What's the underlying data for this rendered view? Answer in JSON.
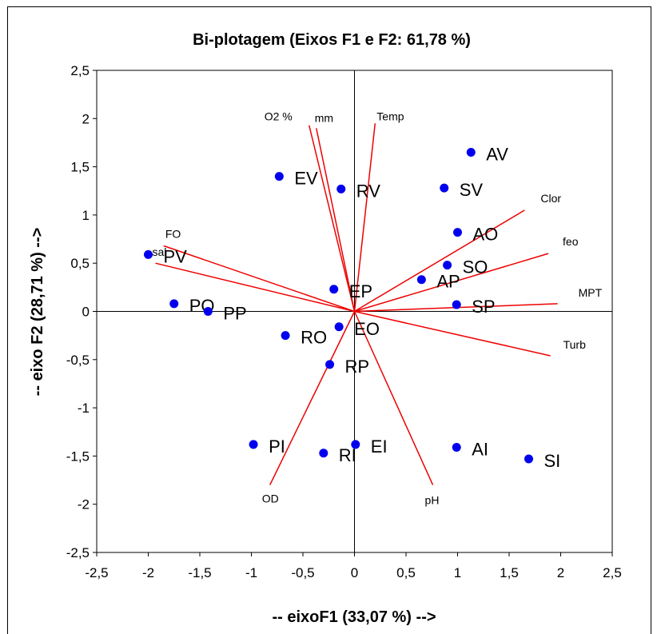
{
  "chart_data": {
    "type": "scatter",
    "title": "Bi-plotagem (Eixos F1 e F2: 61,78 %)",
    "xlabel": "-- eixoF1 (33,07 %) -->",
    "ylabel": "-- eixo F2 (28,71 %) -->",
    "xlim": [
      -2.5,
      2.5
    ],
    "ylim": [
      -2.5,
      2.5
    ],
    "xticks": [
      -2.5,
      -2,
      -1.5,
      -1,
      -0.5,
      0,
      0.5,
      1,
      1.5,
      2,
      2.5
    ],
    "yticks": [
      -2.5,
      -2,
      -1.5,
      -1,
      -0.5,
      0,
      0.5,
      1,
      1.5,
      2,
      2.5
    ],
    "xtick_labels": [
      "-2,5",
      "-2",
      "-1,5",
      "-1",
      "-0,5",
      "0",
      "0,5",
      "1",
      "1,5",
      "2",
      "2,5"
    ],
    "ytick_labels": [
      "-2,5",
      "-2",
      "-1,5",
      "-1",
      "-0,5",
      "0",
      "0,5",
      "1",
      "1,5",
      "2",
      "2,5"
    ],
    "grid": false,
    "point_color": "#0000ee",
    "vector_color": "#ee0000",
    "observations": [
      {
        "label": "AV",
        "x": 1.13,
        "y": 1.65
      },
      {
        "label": "EV",
        "x": -0.73,
        "y": 1.4
      },
      {
        "label": "RV",
        "x": -0.13,
        "y": 1.27
      },
      {
        "label": "SV",
        "x": 0.87,
        "y": 1.28
      },
      {
        "label": "AO",
        "x": 1.0,
        "y": 0.82
      },
      {
        "label": "SO",
        "x": 0.9,
        "y": 0.48
      },
      {
        "label": "AP",
        "x": 0.65,
        "y": 0.33
      },
      {
        "label": "PV",
        "x": -2.0,
        "y": 0.59
      },
      {
        "label": "EP",
        "x": -0.2,
        "y": 0.23
      },
      {
        "label": "SP",
        "x": 0.99,
        "y": 0.07
      },
      {
        "label": "PO",
        "x": -1.75,
        "y": 0.08
      },
      {
        "label": "PP",
        "x": -1.42,
        "y": 0.0
      },
      {
        "label": "EO",
        "x": -0.15,
        "y": -0.16
      },
      {
        "label": "RO",
        "x": -0.67,
        "y": -0.25
      },
      {
        "label": "RP",
        "x": -0.24,
        "y": -0.55
      },
      {
        "label": "PI",
        "x": -0.98,
        "y": -1.38
      },
      {
        "label": "EI",
        "x": 0.01,
        "y": -1.38
      },
      {
        "label": "RI",
        "x": -0.3,
        "y": -1.47
      },
      {
        "label": "AI",
        "x": 0.99,
        "y": -1.41
      },
      {
        "label": "SI",
        "x": 1.69,
        "y": -1.53
      }
    ],
    "variables": [
      {
        "label": "O2 %",
        "x": -0.44,
        "y": 1.93
      },
      {
        "label": "mm",
        "x": -0.37,
        "y": 1.9
      },
      {
        "label": "Temp",
        "x": 0.2,
        "y": 1.95
      },
      {
        "label": "Clor",
        "x": 1.65,
        "y": 1.05
      },
      {
        "label": "feo",
        "x": 1.88,
        "y": 0.6
      },
      {
        "label": "MPT",
        "x": 1.97,
        "y": 0.08
      },
      {
        "label": "Turb",
        "x": 1.9,
        "y": -0.46
      },
      {
        "label": "FO",
        "x": -1.85,
        "y": 0.68
      },
      {
        "label": "sal",
        "x": -1.93,
        "y": 0.5
      },
      {
        "label": "OD",
        "x": -0.82,
        "y": -1.8
      },
      {
        "label": "pH",
        "x": 0.76,
        "y": -1.8
      }
    ]
  }
}
